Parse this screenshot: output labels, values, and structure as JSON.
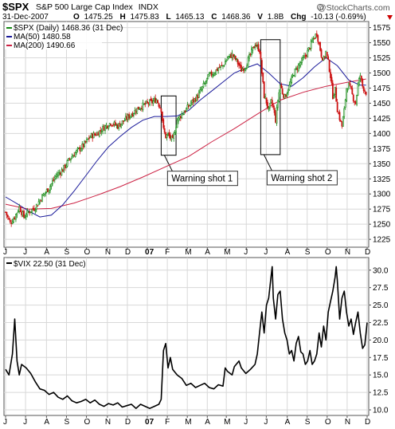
{
  "header": {
    "symbol": "$SPX",
    "name": "S&P 500 Large Cap Index",
    "exchange": "INDX",
    "date": "31-Dec-2007",
    "open_label": "O",
    "open": "1475.25",
    "high_label": "H",
    "high": "1475.83",
    "low_label": "L",
    "low": "1465.13",
    "close_label": "C",
    "close": "1468.36",
    "volume_label": "V",
    "volume": "1.8B",
    "chg_label": "Chg",
    "chg": "-10.13 (-0.69%)",
    "brand": "@StockCharts.com"
  },
  "colors": {
    "up_candle": "#118811",
    "down_candle": "#cc1111",
    "ma50": "#1a1a9a",
    "ma200": "#cc2244",
    "vix_line": "#000000",
    "grid": "#d8d8d8",
    "chg_negative": "#cc0000"
  },
  "chart_data": [
    {
      "type": "candlestick",
      "title": "$SPX (Daily) 1468.36 (31 Dec)",
      "legend": [
        {
          "name": "MA(50) 1480.58",
          "color": "#1a1a9a"
        },
        {
          "name": "MA(200) 1490.66",
          "color": "#cc2244"
        }
      ],
      "y_ticks": [
        1575,
        1550,
        1525,
        1500,
        1475,
        1450,
        1425,
        1400,
        1375,
        1350,
        1325,
        1300,
        1275,
        1250,
        1225
      ],
      "ylim": [
        1212,
        1585
      ],
      "x_labels": [
        "J",
        "J",
        "A",
        "S",
        "O",
        "N",
        "D",
        "07",
        "F",
        "M",
        "A",
        "M",
        "J",
        "J",
        "A",
        "S",
        "O",
        "N",
        "D"
      ],
      "grid": true,
      "close_points": [
        [
          0,
          1270
        ],
        [
          4,
          1252
        ],
        [
          8,
          1262
        ],
        [
          12,
          1278
        ],
        [
          16,
          1262
        ],
        [
          20,
          1270
        ],
        [
          26,
          1278
        ],
        [
          32,
          1296
        ],
        [
          38,
          1310
        ],
        [
          44,
          1330
        ],
        [
          50,
          1340
        ],
        [
          56,
          1358
        ],
        [
          62,
          1370
        ],
        [
          68,
          1380
        ],
        [
          74,
          1395
        ],
        [
          80,
          1400
        ],
        [
          86,
          1410
        ],
        [
          92,
          1418
        ],
        [
          98,
          1412
        ],
        [
          104,
          1422
        ],
        [
          110,
          1432
        ],
        [
          116,
          1442
        ],
        [
          122,
          1448
        ],
        [
          128,
          1452
        ],
        [
          132,
          1456
        ],
        [
          136,
          1440
        ],
        [
          138,
          1406
        ],
        [
          140,
          1395
        ],
        [
          142,
          1398
        ],
        [
          146,
          1388
        ],
        [
          150,
          1422
        ],
        [
          154,
          1432
        ],
        [
          158,
          1440
        ],
        [
          162,
          1450
        ],
        [
          168,
          1462
        ],
        [
          174,
          1482
        ],
        [
          178,
          1496
        ],
        [
          182,
          1500
        ],
        [
          186,
          1508
        ],
        [
          190,
          1512
        ],
        [
          194,
          1525
        ],
        [
          198,
          1530
        ],
        [
          202,
          1520
        ],
        [
          206,
          1505
        ],
        [
          210,
          1512
        ],
        [
          214,
          1530
        ],
        [
          218,
          1548
        ],
        [
          222,
          1538
        ],
        [
          224,
          1500
        ],
        [
          226,
          1462
        ],
        [
          228,
          1452
        ],
        [
          230,
          1438
        ],
        [
          232,
          1452
        ],
        [
          234,
          1442
        ],
        [
          236,
          1422
        ],
        [
          238,
          1455
        ],
        [
          240,
          1480
        ],
        [
          242,
          1468
        ],
        [
          244,
          1460
        ],
        [
          248,
          1478
        ],
        [
          252,
          1500
        ],
        [
          256,
          1512
        ],
        [
          260,
          1522
        ],
        [
          264,
          1535
        ],
        [
          268,
          1552
        ],
        [
          270,
          1560
        ],
        [
          272,
          1565
        ],
        [
          274,
          1548
        ],
        [
          276,
          1530
        ],
        [
          278,
          1522
        ],
        [
          280,
          1535
        ],
        [
          282,
          1518
        ],
        [
          284,
          1495
        ],
        [
          286,
          1462
        ],
        [
          288,
          1472
        ],
        [
          290,
          1440
        ],
        [
          292,
          1425
        ],
        [
          294,
          1412
        ],
        [
          296,
          1438
        ],
        [
          298,
          1475
        ],
        [
          300,
          1480
        ],
        [
          302,
          1470
        ],
        [
          304,
          1458
        ],
        [
          306,
          1450
        ],
        [
          308,
          1480
        ],
        [
          310,
          1496
        ],
        [
          312,
          1478
        ],
        [
          315,
          1468
        ]
      ],
      "ma50_points": [
        [
          0,
          1295
        ],
        [
          10,
          1284
        ],
        [
          20,
          1272
        ],
        [
          30,
          1262
        ],
        [
          40,
          1265
        ],
        [
          50,
          1282
        ],
        [
          60,
          1305
        ],
        [
          70,
          1330
        ],
        [
          80,
          1355
        ],
        [
          90,
          1378
        ],
        [
          100,
          1395
        ],
        [
          110,
          1410
        ],
        [
          120,
          1422
        ],
        [
          130,
          1428
        ],
        [
          140,
          1428
        ],
        [
          150,
          1429
        ],
        [
          160,
          1438
        ],
        [
          170,
          1455
        ],
        [
          180,
          1470
        ],
        [
          190,
          1485
        ],
        [
          200,
          1500
        ],
        [
          210,
          1508
        ],
        [
          220,
          1515
        ],
        [
          230,
          1500
        ],
        [
          240,
          1482
        ],
        [
          250,
          1478
        ],
        [
          260,
          1492
        ],
        [
          270,
          1510
        ],
        [
          280,
          1525
        ],
        [
          290,
          1512
        ],
        [
          300,
          1488
        ],
        [
          310,
          1480
        ],
        [
          315,
          1480
        ]
      ],
      "ma200_points": [
        [
          0,
          1283
        ],
        [
          20,
          1275
        ],
        [
          40,
          1276
        ],
        [
          60,
          1285
        ],
        [
          80,
          1298
        ],
        [
          100,
          1312
        ],
        [
          120,
          1328
        ],
        [
          140,
          1345
        ],
        [
          160,
          1362
        ],
        [
          180,
          1386
        ],
        [
          200,
          1408
        ],
        [
          220,
          1432
        ],
        [
          240,
          1455
        ],
        [
          260,
          1468
        ],
        [
          280,
          1478
        ],
        [
          300,
          1485
        ],
        [
          315,
          1490
        ]
      ],
      "annotations": [
        {
          "label": "Warning shot 1",
          "from_t": 136,
          "to_t": 149,
          "y_top": 1462,
          "y_bottom": 1364
        },
        {
          "label": "Warning shot 2",
          "from_t": 223,
          "to_t": 240,
          "y_top": 1555,
          "y_bottom": 1365
        }
      ]
    },
    {
      "type": "line",
      "title": "$VIX 22.50 (31 Dec)",
      "y_ticks": [
        30.0,
        27.5,
        25.0,
        22.5,
        20.0,
        17.5,
        15.0,
        12.5,
        10.0
      ],
      "y_tick_labels": [
        "30.0",
        "27.5",
        "25.0",
        "22.5",
        "20.0",
        "17.5",
        "15.0",
        "12.5",
        "10.0"
      ],
      "ylim": [
        9.2,
        31.8
      ],
      "x_labels": [
        "J",
        "J",
        "A",
        "S",
        "O",
        "N",
        "D",
        "07",
        "F",
        "M",
        "A",
        "M",
        "J",
        "J",
        "A",
        "S",
        "O",
        "N",
        "D"
      ],
      "grid": true,
      "points": [
        [
          0,
          15.8
        ],
        [
          3,
          15
        ],
        [
          6,
          18
        ],
        [
          8,
          23
        ],
        [
          10,
          17
        ],
        [
          12,
          15
        ],
        [
          14,
          16.5
        ],
        [
          18,
          16
        ],
        [
          22,
          15.2
        ],
        [
          26,
          14
        ],
        [
          30,
          13
        ],
        [
          34,
          12.8
        ],
        [
          38,
          12.2
        ],
        [
          42,
          12.5
        ],
        [
          46,
          11.8
        ],
        [
          50,
          11.5
        ],
        [
          54,
          12
        ],
        [
          58,
          11.3
        ],
        [
          62,
          11
        ],
        [
          66,
          11.2
        ],
        [
          70,
          11.5
        ],
        [
          74,
          11
        ],
        [
          78,
          11.4
        ],
        [
          82,
          10.8
        ],
        [
          86,
          10.5
        ],
        [
          90,
          10.9
        ],
        [
          94,
          10.7
        ],
        [
          98,
          11
        ],
        [
          102,
          10.4
        ],
        [
          106,
          10.6
        ],
        [
          110,
          10.8
        ],
        [
          114,
          10.2
        ],
        [
          118,
          10.8
        ],
        [
          122,
          10.5
        ],
        [
          126,
          10.2
        ],
        [
          130,
          10.5
        ],
        [
          134,
          10.8
        ],
        [
          136,
          11.5
        ],
        [
          138,
          18.5
        ],
        [
          140,
          19.5
        ],
        [
          142,
          16
        ],
        [
          144,
          17.5
        ],
        [
          146,
          15.8
        ],
        [
          150,
          15
        ],
        [
          154,
          14.5
        ],
        [
          158,
          13.5
        ],
        [
          162,
          13.8
        ],
        [
          166,
          13.2
        ],
        [
          170,
          13.5
        ],
        [
          174,
          13.8
        ],
        [
          178,
          13.2
        ],
        [
          182,
          13
        ],
        [
          186,
          13.6
        ],
        [
          190,
          13.4
        ],
        [
          192,
          16
        ],
        [
          194,
          15.5
        ],
        [
          198,
          15
        ],
        [
          200,
          16.2
        ],
        [
          204,
          17
        ],
        [
          206,
          16
        ],
        [
          210,
          15.2
        ],
        [
          214,
          15.8
        ],
        [
          218,
          16.5
        ],
        [
          220,
          18
        ],
        [
          222,
          21
        ],
        [
          224,
          24
        ],
        [
          226,
          21
        ],
        [
          228,
          25
        ],
        [
          230,
          26
        ],
        [
          232,
          29
        ],
        [
          233,
          30.5
        ],
        [
          234,
          26
        ],
        [
          236,
          23
        ],
        [
          238,
          26.5
        ],
        [
          240,
          27
        ],
        [
          242,
          23
        ],
        [
          244,
          21
        ],
        [
          246,
          20
        ],
        [
          248,
          18
        ],
        [
          250,
          18.5
        ],
        [
          252,
          17
        ],
        [
          254,
          19.5
        ],
        [
          256,
          20.5
        ],
        [
          258,
          18.3
        ],
        [
          260,
          18
        ],
        [
          262,
          16.5
        ],
        [
          264,
          17
        ],
        [
          266,
          18.5
        ],
        [
          268,
          16.5
        ],
        [
          270,
          17
        ],
        [
          272,
          18
        ],
        [
          274,
          21
        ],
        [
          276,
          19
        ],
        [
          278,
          22
        ],
        [
          280,
          20
        ],
        [
          282,
          24
        ],
        [
          284,
          25.5
        ],
        [
          286,
          27
        ],
        [
          288,
          29
        ],
        [
          289,
          30.5
        ],
        [
          290,
          28.5
        ],
        [
          292,
          23
        ],
        [
          294,
          26
        ],
        [
          296,
          27
        ],
        [
          298,
          24
        ],
        [
          300,
          22
        ],
        [
          302,
          23
        ],
        [
          304,
          20.8
        ],
        [
          306,
          22.5
        ],
        [
          308,
          24
        ],
        [
          310,
          21
        ],
        [
          312,
          18.8
        ],
        [
          314,
          19.3
        ],
        [
          316,
          22.5
        ]
      ]
    }
  ]
}
